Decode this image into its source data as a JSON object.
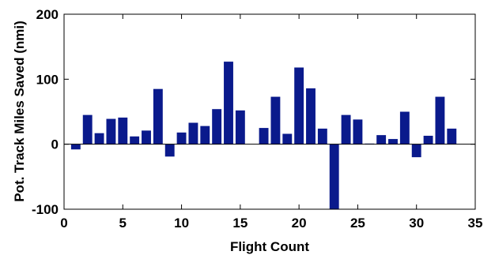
{
  "chart_data": {
    "type": "bar",
    "title": "",
    "xlabel": "Flight Count",
    "ylabel": "Pot. Track Miles Saved (nmi)",
    "xlim": [
      0,
      35
    ],
    "ylim": [
      -100,
      200
    ],
    "xticks": [
      0,
      5,
      10,
      15,
      20,
      25,
      30,
      35
    ],
    "yticks": [
      -100,
      0,
      100,
      200
    ],
    "grid": false,
    "legend": "none",
    "bar_color": "#0a1a8c",
    "x": [
      1,
      2,
      3,
      4,
      5,
      6,
      7,
      8,
      9,
      10,
      11,
      12,
      13,
      14,
      15,
      16,
      17,
      18,
      19,
      20,
      21,
      22,
      23,
      24,
      25,
      26,
      27,
      28,
      29,
      30,
      31,
      32,
      33
    ],
    "values": [
      -8,
      45,
      17,
      39,
      41,
      12,
      21,
      85,
      -19,
      18,
      33,
      28,
      54,
      127,
      52,
      0,
      25,
      73,
      16,
      118,
      86,
      24,
      -100,
      45,
      38,
      1,
      14,
      8,
      50,
      -20,
      13,
      73,
      24
    ]
  }
}
